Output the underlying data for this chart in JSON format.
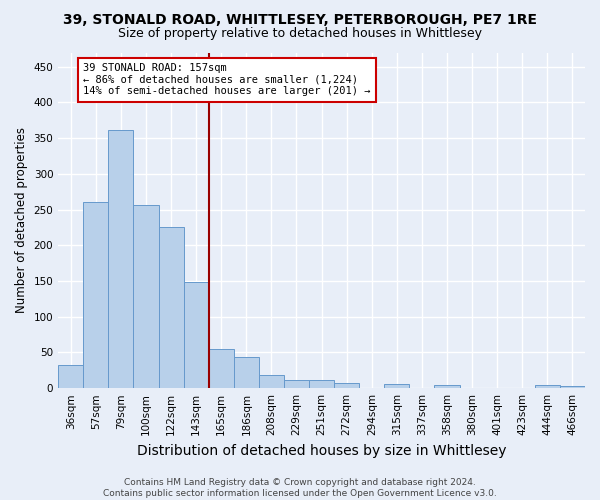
{
  "title1": "39, STONALD ROAD, WHITTLESEY, PETERBOROUGH, PE7 1RE",
  "title2": "Size of property relative to detached houses in Whittlesey",
  "xlabel": "Distribution of detached houses by size in Whittlesey",
  "ylabel": "Number of detached properties",
  "bar_labels": [
    "36sqm",
    "57sqm",
    "79sqm",
    "100sqm",
    "122sqm",
    "143sqm",
    "165sqm",
    "186sqm",
    "208sqm",
    "229sqm",
    "251sqm",
    "272sqm",
    "294sqm",
    "315sqm",
    "337sqm",
    "358sqm",
    "380sqm",
    "401sqm",
    "423sqm",
    "444sqm",
    "466sqm"
  ],
  "bar_values": [
    33,
    260,
    362,
    257,
    225,
    148,
    55,
    44,
    19,
    12,
    11,
    7,
    0,
    6,
    0,
    4,
    0,
    0,
    0,
    4,
    3
  ],
  "bar_color": "#b8d0ea",
  "bar_edge_color": "#6699cc",
  "annotation_text": "39 STONALD ROAD: 157sqm\n← 86% of detached houses are smaller (1,224)\n14% of semi-detached houses are larger (201) →",
  "annotation_box_color": "#ffffff",
  "annotation_box_edge": "#cc0000",
  "footer": "Contains HM Land Registry data © Crown copyright and database right 2024.\nContains public sector information licensed under the Open Government Licence v3.0.",
  "ylim": [
    0,
    470
  ],
  "yticks": [
    0,
    50,
    100,
    150,
    200,
    250,
    300,
    350,
    400,
    450
  ],
  "bg_color": "#e8eef8",
  "plot_bg_color": "#e8eef8",
  "grid_color": "#ffffff",
  "title1_fontsize": 10,
  "title2_fontsize": 9,
  "xlabel_fontsize": 10,
  "ylabel_fontsize": 8.5,
  "tick_fontsize": 7.5,
  "footer_fontsize": 6.5
}
